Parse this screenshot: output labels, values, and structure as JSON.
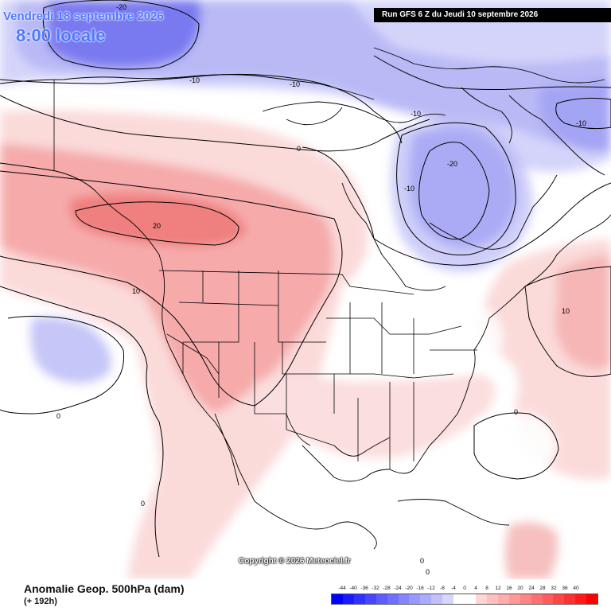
{
  "header": {
    "valid_date": "Vendredi 18 septembre 2026",
    "valid_time": "8:00 locale",
    "run_info": "Run GFS 6 Z du Jeudi 10 septembre 2026"
  },
  "footer": {
    "parameter": "Anomalie Geop. 500hPa (dam)",
    "lead_time": "(+ 192h)",
    "copyright": "Copyright © 2026 Meteociel.fr"
  },
  "contour_labels": [
    "-20",
    "-10",
    "-10",
    "-10",
    "-10",
    "-20",
    "-10",
    "0",
    "20",
    "10",
    "10",
    "0",
    "0",
    "0",
    "0",
    "0"
  ],
  "scale": {
    "labels": [
      "-44",
      "-40",
      "-36",
      "-32",
      "-28",
      "-24",
      "-20",
      "-16",
      "-12",
      "-8",
      "-4",
      "0",
      "4",
      "8",
      "12",
      "16",
      "20",
      "24",
      "28",
      "32",
      "36",
      "40"
    ],
    "colors": [
      "#0000ff",
      "#1a1aff",
      "#3030ff",
      "#4646ff",
      "#5c5cff",
      "#7070ff",
      "#8484ff",
      "#9898ff",
      "#acacff",
      "#c0c0ff",
      "#d6d6ff",
      "#ffffff",
      "#ffffff",
      "#ffd6d6",
      "#ffc0c0",
      "#ffacac",
      "#ff9898",
      "#ff8484",
      "#ff7070",
      "#ff5c5c",
      "#ff4646",
      "#ff3030",
      "#ff1a1a",
      "#ff0000"
    ]
  },
  "colors": {
    "negative_deep": "#7777f2",
    "negative_mid": "#a9a9f5",
    "negative_light": "#d4d4fa",
    "positive_light": "#fce0e0",
    "positive_mid": "#f7b3b3",
    "positive_deep": "#f08080",
    "title_blue": "#4f78ff"
  }
}
